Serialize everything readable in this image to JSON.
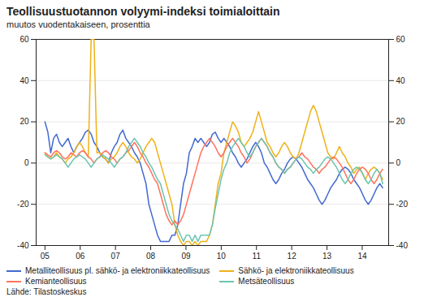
{
  "chart_data": {
    "type": "line",
    "title": "Teollisuustuotannon volyymi-indeksi toimialoittain",
    "subtitle": "muutos vuodentakaiseen, prosenttia",
    "source": "Lähde: Tilastoskeskus",
    "legend": "bottom",
    "grid": true,
    "xlim": [
      2004.75,
      2014.75
    ],
    "xticks": [
      {
        "value": 2005,
        "label": "05"
      },
      {
        "value": 2006,
        "label": "06"
      },
      {
        "value": 2007,
        "label": "07"
      },
      {
        "value": 2008,
        "label": "08"
      },
      {
        "value": 2009,
        "label": "09"
      },
      {
        "value": 2010,
        "label": "10"
      },
      {
        "value": 2011,
        "label": "11"
      },
      {
        "value": 2012,
        "label": "12"
      },
      {
        "value": 2013,
        "label": "13"
      },
      {
        "value": 2014,
        "label": "14"
      }
    ],
    "ylim": [
      -40,
      60
    ],
    "yticks": [
      -40,
      -20,
      0,
      20,
      40,
      60
    ],
    "y2lim": [
      -40,
      60
    ],
    "y2ticks": [
      -40,
      -20,
      0,
      20,
      40,
      60
    ],
    "x": [
      2005,
      2005.0819,
      2005.1638,
      2005.2456,
      2005.3275,
      2005.4094,
      2005.4913,
      2005.5732,
      2005.655,
      2005.7369,
      2005.8188,
      2005.9007,
      2005.9826,
      2006.0644,
      2006.1463,
      2006.2282,
      2006.3101,
      2006.392,
      2006.4738,
      2006.5557,
      2006.6376,
      2006.7195,
      2006.8014,
      2006.8832,
      2006.9651,
      2007.047,
      2007.1289,
      2007.2108,
      2007.2926,
      2007.3745,
      2007.4564,
      2007.5383,
      2007.6202,
      2007.7021,
      2007.7839,
      2007.8658,
      2007.9477,
      2008.0296,
      2008.1115,
      2008.1933,
      2008.2752,
      2008.3571,
      2008.439,
      2008.5209,
      2008.6027,
      2008.6846,
      2008.7665,
      2008.8484,
      2008.9303,
      2009.0121,
      2009.094,
      2009.1759,
      2009.2578,
      2009.3397,
      2009.4215,
      2009.5034,
      2009.5853,
      2009.6672,
      2009.7491,
      2009.8309,
      2009.9128,
      2009.9947,
      2010.0766,
      2010.1585,
      2010.2403,
      2010.3222,
      2010.4041,
      2010.486,
      2010.5679,
      2010.6497,
      2010.7316,
      2010.8135,
      2010.8954,
      2010.9773,
      2011.0591,
      2011.141,
      2011.2229,
      2011.3048,
      2011.3867,
      2011.4685,
      2011.5504,
      2011.6323,
      2011.7142,
      2011.7961,
      2011.8779,
      2011.9598,
      2012.0417,
      2012.1236,
      2012.2055,
      2012.2874,
      2012.3692,
      2012.4511,
      2012.533,
      2012.6149,
      2012.6968,
      2012.7786,
      2012.8605,
      2012.9424,
      2013.0243,
      2013.1062,
      2013.188,
      2013.2699,
      2013.3518,
      2013.4337,
      2013.5156,
      2013.5974,
      2013.6793,
      2013.7612,
      2013.8431,
      2013.925,
      2014.0068,
      2014.0887,
      2014.1706,
      2014.2525,
      2014.3344,
      2014.4162,
      2014.4981,
      2014.58
    ],
    "series": [
      {
        "name": "Metalliteollisuus pl. sähkö- ja elektroniikkateollisuus",
        "values": [
          20,
          15,
          5,
          12,
          14,
          10,
          8,
          10,
          12,
          8,
          5,
          8,
          10,
          12,
          15,
          16,
          14,
          10,
          8,
          5,
          3,
          2,
          0,
          5,
          8,
          10,
          14,
          16,
          12,
          10,
          8,
          5,
          3,
          0,
          -5,
          -10,
          -20,
          -25,
          -30,
          -35,
          -38,
          -38,
          -38,
          -38,
          -35,
          -35,
          -30,
          -20,
          -10,
          -5,
          5,
          8,
          12,
          10,
          12,
          10,
          8,
          10,
          14,
          15,
          12,
          10,
          12,
          10,
          8,
          5,
          3,
          0,
          -2,
          0,
          2,
          5,
          8,
          10,
          8,
          5,
          0,
          -2,
          -5,
          -8,
          -10,
          -8,
          -5,
          -3,
          0,
          2,
          3,
          2,
          0,
          -2,
          -5,
          -8,
          -10,
          -12,
          -15,
          -18,
          -20,
          -18,
          -15,
          -12,
          -10,
          -8,
          -5,
          -3,
          -2,
          -3,
          -5,
          -8,
          -10,
          -12,
          -15,
          -18,
          -20,
          -18,
          -15,
          -12,
          -10,
          -12
        ]
      },
      {
        "name": "Sähkö- ja elektroniikkateollisuus",
        "values": [
          5,
          3,
          2,
          3,
          5,
          3,
          2,
          0,
          2,
          3,
          5,
          8,
          10,
          8,
          5,
          3,
          60,
          60,
          5,
          5,
          3,
          2,
          0,
          2,
          3,
          5,
          8,
          10,
          8,
          5,
          3,
          2,
          0,
          2,
          5,
          8,
          10,
          12,
          10,
          5,
          0,
          -5,
          -10,
          -15,
          -20,
          -30,
          -35,
          -38,
          -40,
          -38,
          -38,
          -40,
          -38,
          -40,
          -38,
          -38,
          -38,
          -35,
          -30,
          -20,
          -10,
          -5,
          5,
          10,
          15,
          20,
          18,
          15,
          10,
          8,
          10,
          12,
          15,
          20,
          25,
          20,
          15,
          10,
          8,
          5,
          3,
          5,
          8,
          10,
          8,
          5,
          3,
          2,
          5,
          10,
          15,
          20,
          25,
          28,
          25,
          20,
          15,
          10,
          5,
          3,
          2,
          5,
          8,
          5,
          3,
          0,
          -2,
          -5,
          -3,
          -2,
          -5,
          -8,
          -5,
          -3,
          -2,
          -3,
          -5,
          -8
        ]
      },
      {
        "name": "Kemianteollisuus",
        "values": [
          5,
          4,
          3,
          5,
          6,
          5,
          3,
          2,
          3,
          5,
          4,
          3,
          5,
          6,
          5,
          3,
          2,
          0,
          2,
          3,
          5,
          6,
          5,
          3,
          2,
          0,
          2,
          3,
          5,
          6,
          8,
          10,
          8,
          5,
          3,
          0,
          -2,
          -5,
          -8,
          -10,
          -15,
          -20,
          -25,
          -28,
          -30,
          -28,
          -30,
          -28,
          -25,
          -20,
          -15,
          -10,
          -5,
          0,
          5,
          8,
          10,
          12,
          10,
          8,
          5,
          3,
          5,
          8,
          10,
          12,
          10,
          8,
          5,
          3,
          0,
          2,
          5,
          8,
          10,
          12,
          10,
          8,
          5,
          3,
          0,
          -2,
          -3,
          -5,
          -3,
          -2,
          0,
          2,
          3,
          5,
          3,
          2,
          0,
          -2,
          -3,
          -5,
          -3,
          -2,
          0,
          2,
          3,
          2,
          0,
          -2,
          -5,
          -8,
          -10,
          -8,
          -5,
          -3,
          -2,
          -3,
          -5,
          -8,
          -10,
          -8,
          -5,
          -3
        ]
      },
      {
        "name": "Metsäteollisuus",
        "values": [
          4,
          3,
          2,
          3,
          4,
          3,
          2,
          0,
          -2,
          0,
          2,
          3,
          4,
          3,
          2,
          0,
          -2,
          0,
          2,
          3,
          4,
          3,
          2,
          0,
          -2,
          0,
          2,
          3,
          5,
          8,
          10,
          12,
          10,
          8,
          5,
          3,
          0,
          -2,
          -5,
          -8,
          -10,
          -15,
          -20,
          -25,
          -28,
          -30,
          -32,
          -35,
          -38,
          -35,
          -35,
          -38,
          -35,
          -38,
          -35,
          -35,
          -35,
          -35,
          -30,
          -22,
          -15,
          -8,
          -3,
          0,
          5,
          8,
          10,
          12,
          10,
          8,
          5,
          3,
          5,
          8,
          10,
          12,
          10,
          8,
          5,
          3,
          0,
          -2,
          -3,
          -5,
          -3,
          -2,
          0,
          2,
          3,
          2,
          0,
          -2,
          -3,
          -5,
          -3,
          -2,
          0,
          2,
          3,
          2,
          0,
          -2,
          -5,
          -8,
          -10,
          -8,
          -5,
          -3,
          -2,
          -3,
          -5,
          -8,
          -10,
          -8,
          -5,
          -3,
          -5,
          -10
        ]
      }
    ]
  }
}
